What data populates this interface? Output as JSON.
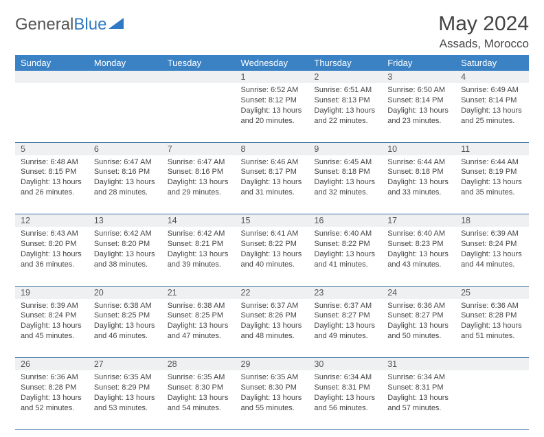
{
  "brand": {
    "part1": "General",
    "part2": "Blue"
  },
  "title": "May 2024",
  "location": "Assads, Morocco",
  "colors": {
    "header_bg": "#3b82c4",
    "header_text": "#ffffff",
    "daynum_bg": "#eef0f2",
    "row_border": "#3b6ea0",
    "body_text": "#444444",
    "page_bg": "#ffffff",
    "logo_gray": "#555555",
    "logo_blue": "#2f78c4"
  },
  "typography": {
    "title_fontsize": 30,
    "location_fontsize": 17,
    "dayheader_fontsize": 13,
    "daynum_fontsize": 12.5,
    "cell_fontsize": 11
  },
  "day_headers": [
    "Sunday",
    "Monday",
    "Tuesday",
    "Wednesday",
    "Thursday",
    "Friday",
    "Saturday"
  ],
  "weeks": [
    {
      "nums": [
        "",
        "",
        "",
        "1",
        "2",
        "3",
        "4"
      ],
      "cells": [
        null,
        null,
        null,
        {
          "sunrise": "6:52 AM",
          "sunset": "8:12 PM",
          "daylight": "13 hours and 20 minutes."
        },
        {
          "sunrise": "6:51 AM",
          "sunset": "8:13 PM",
          "daylight": "13 hours and 22 minutes."
        },
        {
          "sunrise": "6:50 AM",
          "sunset": "8:14 PM",
          "daylight": "13 hours and 23 minutes."
        },
        {
          "sunrise": "6:49 AM",
          "sunset": "8:14 PM",
          "daylight": "13 hours and 25 minutes."
        }
      ]
    },
    {
      "nums": [
        "5",
        "6",
        "7",
        "8",
        "9",
        "10",
        "11"
      ],
      "cells": [
        {
          "sunrise": "6:48 AM",
          "sunset": "8:15 PM",
          "daylight": "13 hours and 26 minutes."
        },
        {
          "sunrise": "6:47 AM",
          "sunset": "8:16 PM",
          "daylight": "13 hours and 28 minutes."
        },
        {
          "sunrise": "6:47 AM",
          "sunset": "8:16 PM",
          "daylight": "13 hours and 29 minutes."
        },
        {
          "sunrise": "6:46 AM",
          "sunset": "8:17 PM",
          "daylight": "13 hours and 31 minutes."
        },
        {
          "sunrise": "6:45 AM",
          "sunset": "8:18 PM",
          "daylight": "13 hours and 32 minutes."
        },
        {
          "sunrise": "6:44 AM",
          "sunset": "8:18 PM",
          "daylight": "13 hours and 33 minutes."
        },
        {
          "sunrise": "6:44 AM",
          "sunset": "8:19 PM",
          "daylight": "13 hours and 35 minutes."
        }
      ]
    },
    {
      "nums": [
        "12",
        "13",
        "14",
        "15",
        "16",
        "17",
        "18"
      ],
      "cells": [
        {
          "sunrise": "6:43 AM",
          "sunset": "8:20 PM",
          "daylight": "13 hours and 36 minutes."
        },
        {
          "sunrise": "6:42 AM",
          "sunset": "8:20 PM",
          "daylight": "13 hours and 38 minutes."
        },
        {
          "sunrise": "6:42 AM",
          "sunset": "8:21 PM",
          "daylight": "13 hours and 39 minutes."
        },
        {
          "sunrise": "6:41 AM",
          "sunset": "8:22 PM",
          "daylight": "13 hours and 40 minutes."
        },
        {
          "sunrise": "6:40 AM",
          "sunset": "8:22 PM",
          "daylight": "13 hours and 41 minutes."
        },
        {
          "sunrise": "6:40 AM",
          "sunset": "8:23 PM",
          "daylight": "13 hours and 43 minutes."
        },
        {
          "sunrise": "6:39 AM",
          "sunset": "8:24 PM",
          "daylight": "13 hours and 44 minutes."
        }
      ]
    },
    {
      "nums": [
        "19",
        "20",
        "21",
        "22",
        "23",
        "24",
        "25"
      ],
      "cells": [
        {
          "sunrise": "6:39 AM",
          "sunset": "8:24 PM",
          "daylight": "13 hours and 45 minutes."
        },
        {
          "sunrise": "6:38 AM",
          "sunset": "8:25 PM",
          "daylight": "13 hours and 46 minutes."
        },
        {
          "sunrise": "6:38 AM",
          "sunset": "8:25 PM",
          "daylight": "13 hours and 47 minutes."
        },
        {
          "sunrise": "6:37 AM",
          "sunset": "8:26 PM",
          "daylight": "13 hours and 48 minutes."
        },
        {
          "sunrise": "6:37 AM",
          "sunset": "8:27 PM",
          "daylight": "13 hours and 49 minutes."
        },
        {
          "sunrise": "6:36 AM",
          "sunset": "8:27 PM",
          "daylight": "13 hours and 50 minutes."
        },
        {
          "sunrise": "6:36 AM",
          "sunset": "8:28 PM",
          "daylight": "13 hours and 51 minutes."
        }
      ]
    },
    {
      "nums": [
        "26",
        "27",
        "28",
        "29",
        "30",
        "31",
        ""
      ],
      "cells": [
        {
          "sunrise": "6:36 AM",
          "sunset": "8:28 PM",
          "daylight": "13 hours and 52 minutes."
        },
        {
          "sunrise": "6:35 AM",
          "sunset": "8:29 PM",
          "daylight": "13 hours and 53 minutes."
        },
        {
          "sunrise": "6:35 AM",
          "sunset": "8:30 PM",
          "daylight": "13 hours and 54 minutes."
        },
        {
          "sunrise": "6:35 AM",
          "sunset": "8:30 PM",
          "daylight": "13 hours and 55 minutes."
        },
        {
          "sunrise": "6:34 AM",
          "sunset": "8:31 PM",
          "daylight": "13 hours and 56 minutes."
        },
        {
          "sunrise": "6:34 AM",
          "sunset": "8:31 PM",
          "daylight": "13 hours and 57 minutes."
        },
        null
      ]
    }
  ],
  "labels": {
    "sunrise_prefix": "Sunrise: ",
    "sunset_prefix": "Sunset: ",
    "daylight_prefix": "Daylight: "
  }
}
